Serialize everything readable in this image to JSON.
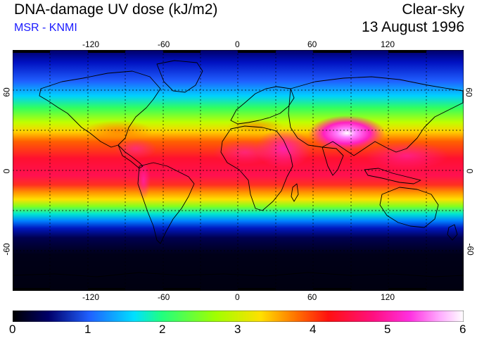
{
  "header": {
    "title": "DNA-damage UV dose (kJ/m2)",
    "source": "MSR - KNMI",
    "condition": "Clear-sky",
    "date": "13 August 1996"
  },
  "map": {
    "longitude_ticks": [
      "-120",
      "-60",
      "0",
      "60",
      "120"
    ],
    "latitude_ticks": [
      "60",
      "0",
      "-60"
    ],
    "longitude_range": [
      -180,
      180
    ],
    "latitude_range": [
      -90,
      90
    ]
  },
  "colorbar": {
    "labels": [
      "0",
      "1",
      "2",
      "3",
      "4",
      "5",
      "6"
    ],
    "min": 0,
    "max": 6
  },
  "colors": {
    "subtitle": "#1a1aff"
  }
}
